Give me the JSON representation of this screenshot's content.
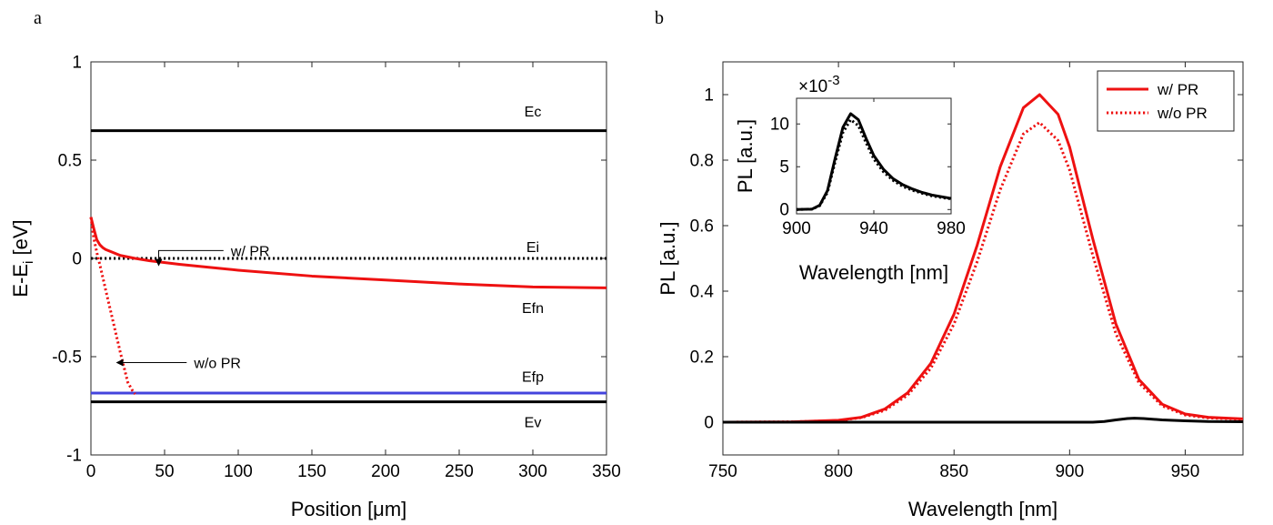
{
  "panel_a_letter": "a",
  "panel_b_letter": "b",
  "chart_data": [
    {
      "type": "line",
      "panel": "a",
      "xlabel": "Position [μm]",
      "ylabel_main": "E-E",
      "ylabel_sub": "i",
      "ylabel_unit": " [eV]",
      "xlim": [
        0,
        350
      ],
      "ylim": [
        -1,
        1
      ],
      "xticks": [
        0,
        50,
        100,
        150,
        200,
        250,
        300,
        350
      ],
      "yticks": [
        -1,
        -0.5,
        0,
        0.5,
        1
      ],
      "ytick_labels": [
        "-1",
        "-0.5",
        "0",
        "0.5",
        "1"
      ],
      "grid": false,
      "series": [
        {
          "name": "Ec",
          "color": "#000000",
          "style": "solid",
          "x": [
            0,
            350
          ],
          "y": [
            0.65,
            0.65
          ]
        },
        {
          "name": "Ei",
          "color": "#000000",
          "style": "dotted",
          "x": [
            0,
            350
          ],
          "y": [
            0,
            0
          ]
        },
        {
          "name": "Efp",
          "color": "#4444dd",
          "style": "solid",
          "x": [
            0,
            350
          ],
          "y": [
            -0.685,
            -0.685
          ]
        },
        {
          "name": "Ev",
          "color": "#000000",
          "style": "solid",
          "x": [
            0,
            350
          ],
          "y": [
            -0.73,
            -0.73
          ]
        },
        {
          "name": "Efn",
          "color": "#ee1111",
          "style": "solid",
          "x": [
            0,
            2,
            4,
            6,
            8,
            10,
            15,
            20,
            30,
            40,
            60,
            80,
            100,
            150,
            200,
            250,
            300,
            350
          ],
          "y": [
            0.21,
            0.15,
            0.095,
            0.07,
            0.055,
            0.045,
            0.03,
            0.015,
            0.0,
            -0.012,
            -0.03,
            -0.045,
            -0.06,
            -0.09,
            -0.11,
            -0.13,
            -0.145,
            -0.15
          ]
        },
        {
          "name": "w/o PR",
          "color": "#ee1111",
          "style": "dotted",
          "x": [
            0,
            2,
            4,
            6,
            10,
            15,
            20,
            25,
            28,
            30
          ],
          "y": [
            0.21,
            0.1,
            0.03,
            -0.03,
            -0.16,
            -0.32,
            -0.48,
            -0.63,
            -0.67,
            -0.69
          ]
        }
      ],
      "labels": [
        {
          "text": "Ec",
          "x": 300,
          "y": 0.75
        },
        {
          "text": "Ei",
          "x": 300,
          "y": 0.06
        },
        {
          "text": "Efn",
          "x": 300,
          "y": -0.25
        },
        {
          "text": "Efp",
          "x": 300,
          "y": -0.6
        },
        {
          "text": "Ev",
          "x": 300,
          "y": -0.83
        }
      ],
      "annotations": [
        {
          "text": "w/ PR",
          "text_x": 95,
          "text_y": 0.04,
          "arrow_from": [
            90,
            0.04
          ],
          "arrow_to": [
            42,
            -0.04
          ]
        },
        {
          "text": "w/o PR",
          "text_x": 70,
          "text_y": -0.53,
          "arrow_from": [
            65,
            -0.53
          ],
          "arrow_to": [
            17,
            -0.53
          ]
        }
      ]
    },
    {
      "type": "line",
      "panel": "b",
      "xlabel": "Wavelength [nm]",
      "ylabel": "PL [a.u.]",
      "xlim": [
        750,
        975
      ],
      "ylim": [
        -0.1,
        1.1
      ],
      "xticks": [
        750,
        800,
        850,
        900,
        950
      ],
      "yticks": [
        0,
        0.2,
        0.4,
        0.6,
        0.8,
        1
      ],
      "ytick_labels": [
        "0",
        "0.2",
        "0.4",
        "0.6",
        "0.8",
        "1"
      ],
      "grid": false,
      "legend": {
        "placement": "top-right",
        "entries": [
          "w/ PR",
          "w/o PR"
        ]
      },
      "series": [
        {
          "name": "w/ PR",
          "color": "#ee1111",
          "style": "solid",
          "x": [
            750,
            780,
            800,
            810,
            820,
            830,
            840,
            850,
            860,
            870,
            880,
            887,
            895,
            900,
            910,
            920,
            930,
            940,
            950,
            960,
            975
          ],
          "y": [
            0.0,
            0.001,
            0.006,
            0.015,
            0.04,
            0.09,
            0.18,
            0.33,
            0.54,
            0.78,
            0.96,
            1.0,
            0.94,
            0.84,
            0.56,
            0.3,
            0.13,
            0.055,
            0.025,
            0.015,
            0.01
          ]
        },
        {
          "name": "w/o PR",
          "color": "#ee1111",
          "style": "dotted",
          "x": [
            750,
            780,
            800,
            810,
            820,
            830,
            840,
            850,
            860,
            870,
            880,
            887,
            895,
            900,
            910,
            920,
            930,
            940,
            950,
            960,
            975
          ],
          "y": [
            0.0,
            0.001,
            0.005,
            0.014,
            0.036,
            0.083,
            0.165,
            0.3,
            0.49,
            0.71,
            0.88,
            0.915,
            0.86,
            0.77,
            0.51,
            0.27,
            0.12,
            0.05,
            0.022,
            0.013,
            0.009
          ]
        },
        {
          "name": "",
          "color": "#000000",
          "style": "solid",
          "x": [
            750,
            910,
            915,
            920,
            925,
            928,
            932,
            940,
            950,
            960,
            975
          ],
          "y": [
            0.0,
            0.0,
            0.002,
            0.007,
            0.011,
            0.012,
            0.011,
            0.007,
            0.004,
            0.002,
            0.0015
          ]
        }
      ]
    },
    {
      "type": "line",
      "panel": "b-inset",
      "xlabel": "Wavelength [nm]",
      "ylabel": "PL [a.u.]",
      "scale_base": "×10",
      "scale_exp": "-3",
      "xlim": [
        900,
        980
      ],
      "ylim": [
        -0.5,
        13
      ],
      "xticks": [
        900,
        940,
        980
      ],
      "yticks": [
        0,
        5,
        10
      ],
      "ytick_labels": [
        "0",
        "5",
        "10"
      ],
      "series": [
        {
          "name": "",
          "color": "#000000",
          "style": "solid",
          "x": [
            900,
            908,
            912,
            916,
            920,
            924,
            928,
            932,
            936,
            940,
            945,
            950,
            955,
            960,
            965,
            970,
            975,
            980
          ],
          "y": [
            0.0,
            0.05,
            0.5,
            2.2,
            6.0,
            9.6,
            11.2,
            10.5,
            8.3,
            6.3,
            4.7,
            3.6,
            2.9,
            2.4,
            2.0,
            1.7,
            1.5,
            1.3
          ]
        },
        {
          "name": "",
          "color": "#000000",
          "style": "dotted",
          "x": [
            900,
            908,
            912,
            916,
            920,
            924,
            928,
            932,
            936,
            940,
            945,
            950,
            955,
            960,
            965,
            970,
            975,
            980
          ],
          "y": [
            0.0,
            0.05,
            0.45,
            2.0,
            5.6,
            9.0,
            10.5,
            9.8,
            7.8,
            5.9,
            4.4,
            3.4,
            2.7,
            2.25,
            1.9,
            1.6,
            1.4,
            1.25
          ]
        }
      ]
    }
  ]
}
